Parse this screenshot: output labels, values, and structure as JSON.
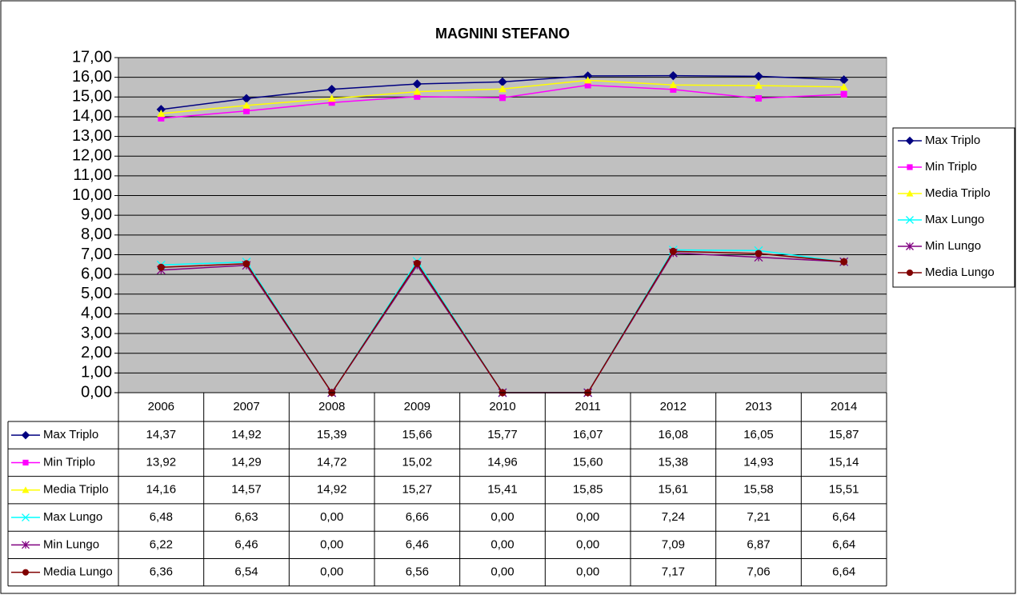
{
  "chart_data": {
    "type": "line",
    "title": "MAGNINI STEFANO",
    "categories": [
      "2006",
      "2007",
      "2008",
      "2009",
      "2010",
      "2011",
      "2012",
      "2013",
      "2014"
    ],
    "ylim": [
      0,
      17
    ],
    "yticks": [
      {
        "value": 0,
        "label": "0,00"
      },
      {
        "value": 1,
        "label": "1,00"
      },
      {
        "value": 2,
        "label": "2,00"
      },
      {
        "value": 3,
        "label": "3,00"
      },
      {
        "value": 4,
        "label": "4,00"
      },
      {
        "value": 5,
        "label": "5,00"
      },
      {
        "value": 6,
        "label": "6,00"
      },
      {
        "value": 7,
        "label": "7,00"
      },
      {
        "value": 8,
        "label": "8,00"
      },
      {
        "value": 9,
        "label": "9,00"
      },
      {
        "value": 10,
        "label": "10,00"
      },
      {
        "value": 11,
        "label": "11,00"
      },
      {
        "value": 12,
        "label": "12,00"
      },
      {
        "value": 13,
        "label": "13,00"
      },
      {
        "value": 14,
        "label": "14,00"
      },
      {
        "value": 15,
        "label": "15,00"
      },
      {
        "value": 16,
        "label": "16,00"
      },
      {
        "value": 17,
        "label": "17,00"
      }
    ],
    "grid": true,
    "legend": "right",
    "series": [
      {
        "name": "Max Triplo",
        "color": "#000080",
        "marker": "diamond",
        "values": [
          14.37,
          14.92,
          15.39,
          15.66,
          15.77,
          16.07,
          16.08,
          16.05,
          15.87
        ],
        "value_labels": [
          "14,37",
          "14,92",
          "15,39",
          "15,66",
          "15,77",
          "16,07",
          "16,08",
          "16,05",
          "15,87"
        ]
      },
      {
        "name": "Min Triplo",
        "color": "#ff00ff",
        "marker": "square",
        "values": [
          13.92,
          14.29,
          14.72,
          15.02,
          14.96,
          15.6,
          15.38,
          14.93,
          15.14
        ],
        "value_labels": [
          "13,92",
          "14,29",
          "14,72",
          "15,02",
          "14,96",
          "15,60",
          "15,38",
          "14,93",
          "15,14"
        ]
      },
      {
        "name": "Media Triplo",
        "color": "#ffff00",
        "marker": "triangle",
        "values": [
          14.16,
          14.57,
          14.92,
          15.27,
          15.41,
          15.85,
          15.61,
          15.58,
          15.51
        ],
        "value_labels": [
          "14,16",
          "14,57",
          "14,92",
          "15,27",
          "15,41",
          "15,85",
          "15,61",
          "15,58",
          "15,51"
        ]
      },
      {
        "name": "Max Lungo",
        "color": "#00ffff",
        "marker": "x",
        "values": [
          6.48,
          6.63,
          0,
          6.66,
          0,
          0,
          7.24,
          7.21,
          6.64
        ],
        "value_labels": [
          "6,48",
          "6,63",
          "0,00",
          "6,66",
          "0,00",
          "0,00",
          "7,24",
          "7,21",
          "6,64"
        ]
      },
      {
        "name": "Min Lungo",
        "color": "#800080",
        "marker": "star",
        "values": [
          6.22,
          6.46,
          0,
          6.46,
          0,
          0,
          7.09,
          6.87,
          6.64
        ],
        "value_labels": [
          "6,22",
          "6,46",
          "0,00",
          "6,46",
          "0,00",
          "0,00",
          "7,09",
          "6,87",
          "6,64"
        ]
      },
      {
        "name": "Media Lungo",
        "color": "#800000",
        "marker": "circle",
        "values": [
          6.36,
          6.54,
          0,
          6.56,
          0,
          0,
          7.17,
          7.06,
          6.64
        ],
        "value_labels": [
          "6,36",
          "6,54",
          "0,00",
          "6,56",
          "0,00",
          "0,00",
          "7,17",
          "7,06",
          "6,64"
        ]
      }
    ]
  }
}
